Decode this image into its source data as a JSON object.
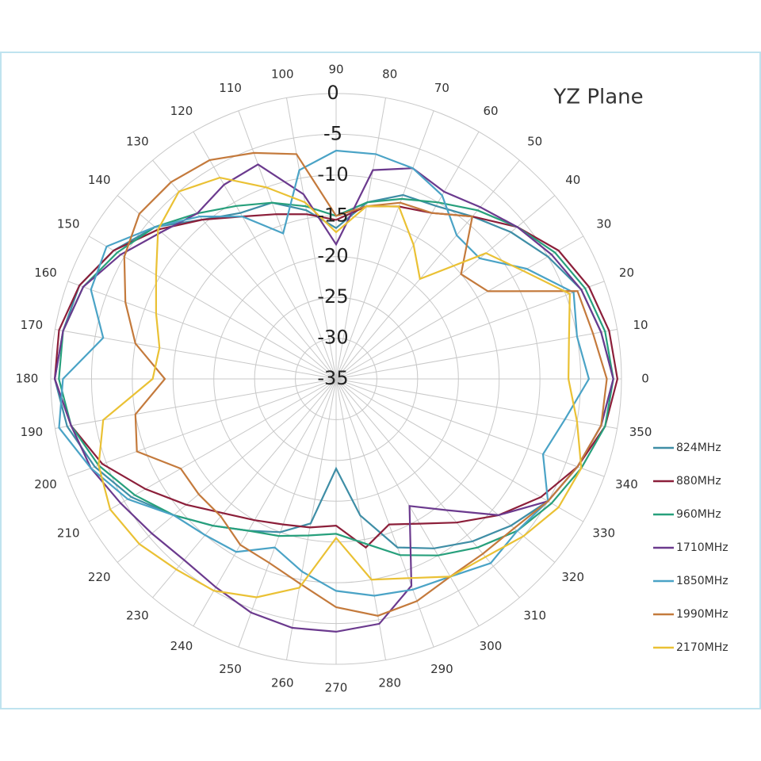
{
  "chart_data": {
    "type": "polar",
    "title": "YZ Plane",
    "categories": [
      0,
      10,
      20,
      30,
      40,
      50,
      60,
      70,
      80,
      90,
      100,
      110,
      120,
      130,
      140,
      150,
      160,
      170,
      180,
      190,
      200,
      210,
      220,
      230,
      240,
      250,
      260,
      270,
      280,
      290,
      300,
      310,
      320,
      330,
      340,
      350
    ],
    "rlim": [
      -35,
      0
    ],
    "rticks": [
      0,
      -5,
      -10,
      -15,
      -20,
      -25,
      -30,
      -35
    ],
    "grid": true,
    "legend": "right",
    "series": [
      {
        "name": "824MHz",
        "color": "#3f8ea6",
        "values": [
          -1,
          -2,
          -3,
          -5,
          -7,
          -9,
          -10.5,
          -11,
          -13,
          -16.5,
          -14,
          -12,
          -11.5,
          -9.5,
          -6,
          -3.5,
          -1.5,
          -1,
          -0.5,
          -1.5,
          -3.5,
          -6,
          -9,
          -11.5,
          -13.5,
          -15,
          -17,
          -24,
          -18,
          -13,
          -11,
          -9,
          -7,
          -5,
          -3.5,
          -2
        ]
      },
      {
        "name": "880MHz",
        "color": "#8c1f3a",
        "values": [
          -0.5,
          -1,
          -2,
          -3.5,
          -6,
          -9,
          -11.5,
          -12.5,
          -13.5,
          -15.5,
          -14.5,
          -13.5,
          -12,
          -9.5,
          -6.5,
          -3.5,
          -1.5,
          -0.5,
          -0.5,
          -2,
          -4.5,
          -8,
          -11,
          -13.5,
          -15,
          -16,
          -16.5,
          -17,
          -14,
          -16,
          -14.5,
          -12,
          -9,
          -6,
          -3.5,
          -1.5
        ]
      },
      {
        "name": "960MHz",
        "color": "#27a07c",
        "values": [
          -1,
          -1.5,
          -2.5,
          -4,
          -6,
          -8,
          -10,
          -11.5,
          -13,
          -15,
          -13.5,
          -12,
          -10.5,
          -8.5,
          -6,
          -4,
          -2,
          -1,
          -1,
          -2,
          -4,
          -6.5,
          -9,
          -11.5,
          -13.5,
          -14.5,
          -15.5,
          -16,
          -14.5,
          -12,
          -10,
          -8,
          -6,
          -4.5,
          -3,
          -1.5
        ]
      },
      {
        "name": "1710MHz",
        "color": "#6b3a8e",
        "values": [
          -1,
          -2,
          -3,
          -4.5,
          -6,
          -7.5,
          -8.5,
          -7.5,
          -9,
          -18.5,
          -12,
          -7,
          -7.5,
          -8.5,
          -7,
          -4.5,
          -2,
          -1,
          -0.5,
          -2,
          -3,
          -4.5,
          -5.5,
          -6,
          -5.5,
          -4.5,
          -4,
          -4,
          -4.5,
          -8,
          -17,
          -14,
          -9,
          -5,
          -3.5,
          -2
        ]
      },
      {
        "name": "1850MHz",
        "color": "#4aa3c6",
        "values": [
          -4,
          -5,
          -4,
          -8,
          -12,
          -12,
          -9,
          -7.5,
          -7,
          -7,
          -9,
          -16,
          -12,
          -9,
          -6,
          -2.5,
          -3,
          -6,
          -1.5,
          -0.5,
          -3,
          -5.5,
          -9,
          -10,
          -10.5,
          -13,
          -11,
          -9,
          -8,
          -7.5,
          -7,
          -5.5,
          -6,
          -5,
          -8,
          -6.5
        ]
      },
      {
        "name": "1990MHz",
        "color": "#c47a3c",
        "values": [
          -1.8,
          -3,
          -3.5,
          -13.5,
          -15,
          -9,
          -11.5,
          -12,
          -13.5,
          -15,
          -7,
          -5.5,
          -4,
          -3.5,
          -3.5,
          -5,
          -7.5,
          -10,
          -14,
          -10,
          -9,
          -13,
          -13,
          -13,
          -11.5,
          -11,
          -9.5,
          -7,
          -5.5,
          -6,
          -7,
          -7,
          -6.5,
          -5,
          -3.5,
          -2
        ]
      },
      {
        "name": "2170MHz",
        "color": "#eac134",
        "values": [
          -6.5,
          -6,
          -4.5,
          -8.5,
          -11,
          -19,
          -16,
          -12.5,
          -13.5,
          -17,
          -13,
          -10,
          -6.5,
          -5,
          -6.5,
          -9.5,
          -11.5,
          -13,
          -12.5,
          -6,
          -4,
          -3,
          -3.5,
          -4.5,
          -5,
          -6.5,
          -9,
          -15.5,
          -10,
          -9,
          -7,
          -6.5,
          -5,
          -3.5,
          -3,
          -5
        ]
      }
    ]
  }
}
